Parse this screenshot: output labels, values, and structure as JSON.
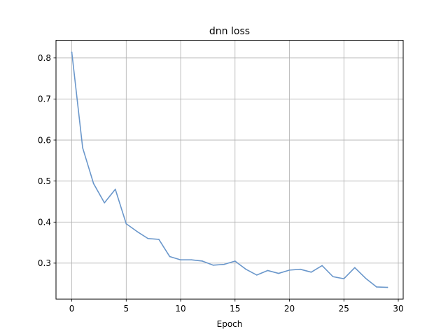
{
  "chart_data": {
    "type": "line",
    "title": "dnn loss",
    "xlabel": "Epoch",
    "ylabel": "",
    "xlim": [
      -1.45,
      30.45
    ],
    "ylim": [
      0.2125,
      0.843
    ],
    "xticks": [
      0,
      5,
      10,
      15,
      20,
      25,
      30
    ],
    "yticks": [
      0.3,
      0.4,
      0.5,
      0.6,
      0.7,
      0.8
    ],
    "grid": true,
    "line_color": "#6a97cb",
    "series": [
      {
        "x": [
          0,
          1,
          2,
          3,
          4,
          5,
          6,
          7,
          8,
          9,
          10,
          11,
          12,
          13,
          14,
          15,
          16,
          17,
          18,
          19,
          20,
          21,
          22,
          23,
          24,
          25,
          26,
          27,
          28,
          29
        ],
        "values": [
          0.814,
          0.581,
          0.494,
          0.447,
          0.48,
          0.396,
          0.377,
          0.36,
          0.358,
          0.316,
          0.308,
          0.308,
          0.305,
          0.295,
          0.297,
          0.305,
          0.285,
          0.271,
          0.282,
          0.275,
          0.283,
          0.285,
          0.278,
          0.294,
          0.267,
          0.262,
          0.289,
          0.263,
          0.242,
          0.241
        ]
      }
    ]
  }
}
